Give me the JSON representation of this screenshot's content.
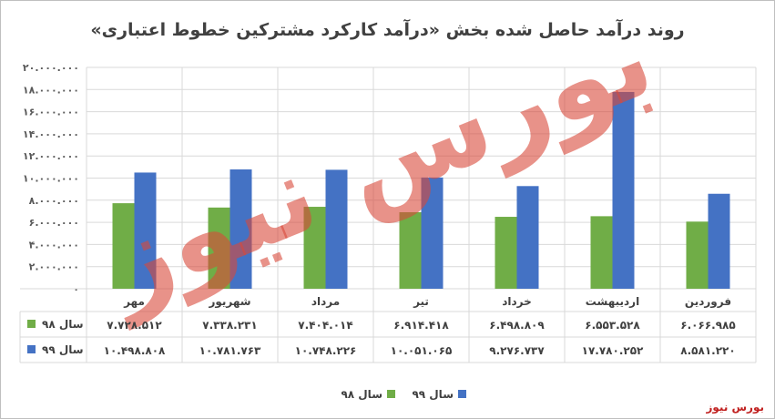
{
  "chart_data": {
    "type": "bar",
    "title": "روند درآمد حاصل شده بخش «درآمد کارکرد مشترکین خطوط اعتباری»",
    "categories": [
      "مهر",
      "شهریور",
      "مرداد",
      "تیر",
      "خرداد",
      "اردیبهشت",
      "فروردین"
    ],
    "series": [
      {
        "name": "سال ۹۸",
        "color": "#70ad47",
        "values": [
          7728512,
          7338231,
          7404014,
          6914418,
          6498809,
          6553528,
          6066985
        ],
        "labels": [
          "۷.۷۲۸.۵۱۲",
          "۷.۳۳۸.۲۳۱",
          "۷.۴۰۴.۰۱۴",
          "۶.۹۱۴.۴۱۸",
          "۶.۴۹۸.۸۰۹",
          "۶.۵۵۳.۵۲۸",
          "۶.۰۶۶.۹۸۵"
        ]
      },
      {
        "name": "سال ۹۹",
        "color": "#4472c4",
        "values": [
          10498808,
          10781763,
          10748226,
          10051065,
          9276737,
          17780252,
          8581220
        ],
        "labels": [
          "۱۰.۴۹۸.۸۰۸",
          "۱۰.۷۸۱.۷۶۳",
          "۱۰.۷۴۸.۲۲۶",
          "۱۰.۰۵۱.۰۶۵",
          "۹.۲۷۶.۷۳۷",
          "۱۷.۷۸۰.۲۵۲",
          "۸.۵۸۱.۲۲۰"
        ]
      }
    ],
    "ylim": [
      0,
      20000000
    ],
    "yticks": [
      0,
      2000000,
      4000000,
      6000000,
      8000000,
      10000000,
      12000000,
      14000000,
      16000000,
      18000000,
      20000000
    ],
    "ytick_labels": [
      "۰",
      "۲.۰۰۰.۰۰۰",
      "۴.۰۰۰.۰۰۰",
      "۶.۰۰۰.۰۰۰",
      "۸.۰۰۰.۰۰۰",
      "۱۰.۰۰۰.۰۰۰",
      "۱۲.۰۰۰.۰۰۰",
      "۱۴.۰۰۰.۰۰۰",
      "۱۶.۰۰۰.۰۰۰",
      "۱۸.۰۰۰.۰۰۰",
      "۲۰.۰۰۰.۰۰۰"
    ],
    "grid": true,
    "legend": "bottom",
    "data_table": true
  },
  "watermark_text": "بورس نیوز",
  "brand_text": "بورس نیوز"
}
